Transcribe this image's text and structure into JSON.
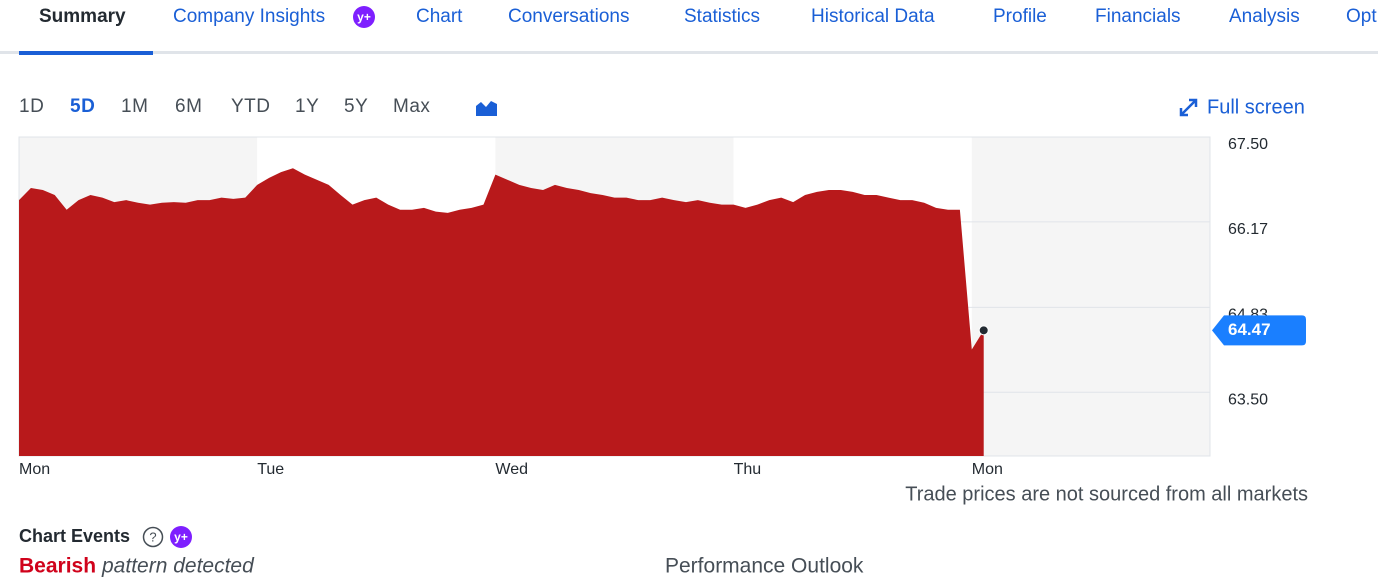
{
  "tabs": [
    "Summary",
    "Company Insights",
    "Chart",
    "Conversations",
    "Statistics",
    "Historical Data",
    "Profile",
    "Financials",
    "Analysis",
    "Opt"
  ],
  "badge": "y+",
  "ranges": [
    "1D",
    "5D",
    "1M",
    "6M",
    "YTD",
    "1Y",
    "5Y",
    "Max"
  ],
  "full_screen": "Full screen",
  "chart_data": {
    "type": "area",
    "color": "#b8191b",
    "categories": [
      "Mon",
      null,
      null,
      null,
      null,
      null,
      null,
      null,
      null,
      null,
      null,
      null,
      null,
      null,
      null,
      null,
      null,
      null,
      null,
      null,
      "Tue",
      null,
      null,
      null,
      null,
      null,
      null,
      null,
      null,
      null,
      null,
      null,
      null,
      null,
      null,
      null,
      null,
      null,
      null,
      null,
      "Wed",
      null,
      null,
      null,
      null,
      null,
      null,
      null,
      null,
      null,
      null,
      null,
      null,
      null,
      null,
      null,
      null,
      null,
      null,
      null,
      "Thu",
      null,
      null,
      null,
      null,
      null,
      null,
      null,
      null,
      null,
      null,
      null,
      null,
      null,
      null,
      null,
      null,
      null,
      null,
      null,
      "Mon",
      null
    ],
    "values": [
      66.51,
      66.7,
      66.67,
      66.59,
      66.36,
      66.51,
      66.59,
      66.55,
      66.48,
      66.51,
      66.47,
      66.44,
      66.47,
      66.48,
      66.47,
      66.51,
      66.51,
      66.55,
      66.53,
      66.55,
      66.75,
      66.86,
      66.95,
      67.01,
      66.91,
      66.83,
      66.75,
      66.59,
      66.44,
      66.51,
      66.55,
      66.44,
      66.36,
      66.36,
      66.39,
      66.33,
      66.31,
      66.36,
      66.39,
      66.44,
      66.91,
      66.83,
      66.75,
      66.7,
      66.67,
      66.75,
      66.7,
      66.67,
      66.62,
      66.59,
      66.55,
      66.55,
      66.51,
      66.51,
      66.55,
      66.51,
      66.48,
      66.51,
      66.47,
      66.44,
      66.44,
      66.39,
      66.44,
      66.51,
      66.55,
      66.48,
      66.59,
      66.64,
      66.67,
      66.67,
      66.64,
      66.59,
      66.59,
      66.55,
      66.51,
      66.51,
      66.47,
      66.39,
      66.36,
      66.36,
      64.17,
      64.47
    ],
    "ylim": [
      62.5,
      67.5
    ],
    "yticks": [
      {
        "value": 67.5,
        "label": "67.50"
      },
      66.17,
      64.83,
      {
        "value": 63.5,
        "label": "63.50"
      }
    ],
    "current_price": 64.47,
    "grid": true
  },
  "note": "Trade prices are not sourced from all markets",
  "chart_events": {
    "title": "Chart Events",
    "help": "?",
    "signal": "Bearish",
    "signal_text": "pattern detected"
  },
  "performance_outlook": "Performance Outlook"
}
